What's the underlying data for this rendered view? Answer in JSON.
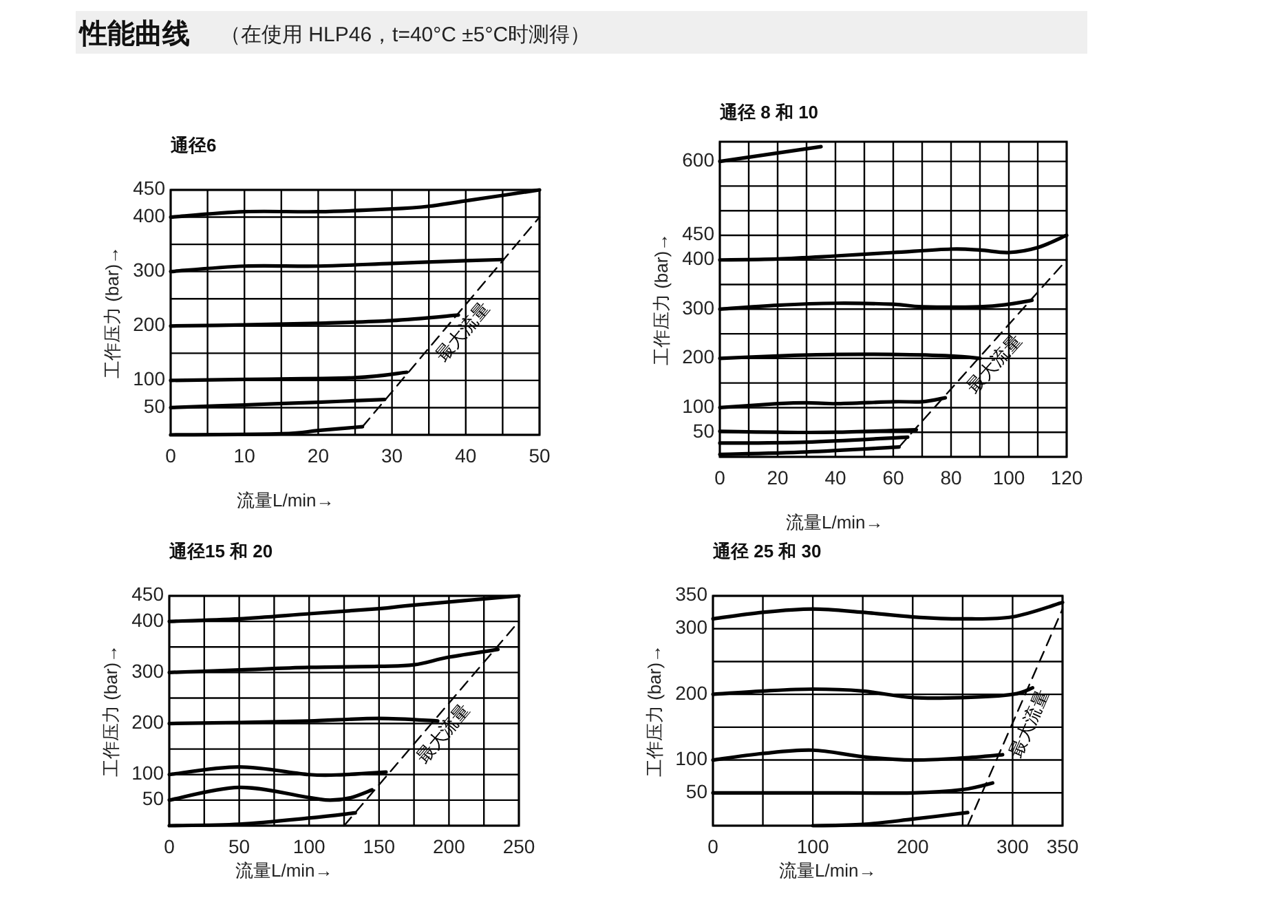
{
  "chart_data": [
    {
      "type": "line",
      "title": "通径6",
      "xlabel": "流量L/min→",
      "ylabel": "工作压力 (bar)→",
      "annotations": [
        "性能曲线",
        "（在使用 HLP46，t=40°C ±5°C时测得）"
      ],
      "grid": true,
      "xlim": [
        0,
        50
      ],
      "ylim": [
        0,
        450
      ],
      "xticks": [
        0,
        {
          "value": 5,
          "label": null
        },
        10,
        {
          "value": 15,
          "label": null
        },
        20,
        {
          "value": 25,
          "label": null
        },
        30,
        {
          "value": 35,
          "label": null
        },
        40,
        {
          "value": 45,
          "label": null
        },
        50
      ],
      "yticks": [
        {
          "value": 0,
          "label": null
        },
        50,
        100,
        {
          "value": 150,
          "label": null
        },
        200,
        {
          "value": 250,
          "label": null
        },
        300,
        {
          "value": 350,
          "label": null
        },
        400,
        450
      ],
      "series": [
        {
          "color": "#000000",
          "x": [
            0,
            10,
            20,
            30,
            35,
            40,
            50
          ],
          "values": [
            400,
            410,
            410,
            415,
            420,
            430,
            450
          ]
        },
        {
          "color": "#000000",
          "x": [
            0,
            10,
            20,
            30,
            40,
            45
          ],
          "values": [
            300,
            310,
            310,
            315,
            320,
            322
          ]
        },
        {
          "color": "#000000",
          "x": [
            0,
            10,
            20,
            30,
            39
          ],
          "values": [
            200,
            202,
            205,
            210,
            220
          ]
        },
        {
          "color": "#000000",
          "x": [
            0,
            10,
            25,
            32
          ],
          "values": [
            100,
            102,
            105,
            115
          ]
        },
        {
          "color": "#000000",
          "x": [
            0,
            10,
            20,
            29
          ],
          "values": [
            50,
            55,
            60,
            65
          ]
        },
        {
          "color": "#000000",
          "x": [
            0,
            15,
            20,
            26
          ],
          "values": [
            0,
            2,
            8,
            15
          ]
        },
        {
          "name": "最大流量",
          "color": "#000000",
          "line_style": "dashed",
          "x": [
            26,
            50
          ],
          "values": [
            15,
            400
          ]
        }
      ]
    },
    {
      "type": "line",
      "title": "通径 8 和 10",
      "xlabel": "流量L/min→",
      "ylabel": "工作压力 (bar)→",
      "grid": true,
      "xlim": [
        0,
        120
      ],
      "ylim": [
        0,
        640
      ],
      "xticks": [
        0,
        {
          "value": 10,
          "label": null
        },
        20,
        {
          "value": 30,
          "label": null
        },
        40,
        {
          "value": 50,
          "label": null
        },
        60,
        {
          "value": 70,
          "label": null
        },
        80,
        {
          "value": 90,
          "label": null
        },
        100,
        {
          "value": 110,
          "label": null
        },
        120
      ],
      "yticks": [
        {
          "value": 0,
          "label": null
        },
        50,
        100,
        {
          "value": 150,
          "label": null
        },
        200,
        {
          "value": 250,
          "label": null
        },
        300,
        {
          "value": 350,
          "label": null
        },
        400,
        450,
        {
          "value": 500,
          "label": null
        },
        {
          "value": 550,
          "label": null
        },
        600
      ],
      "series": [
        {
          "color": "#000000",
          "x": [
            0,
            35
          ],
          "values": [
            600,
            630
          ]
        },
        {
          "color": "#000000",
          "x": [
            0,
            20,
            40,
            60,
            80,
            90,
            100,
            110,
            120
          ],
          "values": [
            400,
            402,
            408,
            415,
            422,
            420,
            415,
            425,
            450
          ]
        },
        {
          "color": "#000000",
          "x": [
            0,
            20,
            40,
            60,
            70,
            90,
            100,
            108
          ],
          "values": [
            300,
            308,
            312,
            310,
            305,
            305,
            310,
            318
          ]
        },
        {
          "color": "#000000",
          "x": [
            0,
            20,
            40,
            60,
            80,
            90
          ],
          "values": [
            200,
            205,
            208,
            208,
            205,
            200
          ]
        },
        {
          "color": "#000000",
          "x": [
            0,
            20,
            30,
            40,
            60,
            70,
            78
          ],
          "values": [
            100,
            108,
            110,
            108,
            112,
            112,
            120
          ]
        },
        {
          "color": "#000000",
          "x": [
            0,
            20,
            40,
            68
          ],
          "values": [
            52,
            50,
            50,
            55
          ]
        },
        {
          "color": "#000000",
          "x": [
            0,
            30,
            65
          ],
          "values": [
            28,
            30,
            40
          ]
        },
        {
          "color": "#000000",
          "x": [
            0,
            30,
            62
          ],
          "values": [
            5,
            10,
            20
          ]
        },
        {
          "name": "最大流量",
          "color": "#000000",
          "line_style": "dashed",
          "x": [
            62,
            120
          ],
          "values": [
            20,
            400
          ]
        }
      ]
    },
    {
      "type": "line",
      "title": "通径15 和 20",
      "xlabel": "流量L/min→",
      "ylabel": "工作压力 (bar)→",
      "grid": true,
      "xlim": [
        0,
        250
      ],
      "ylim": [
        0,
        450
      ],
      "xticks": [
        0,
        {
          "value": 25,
          "label": null
        },
        50,
        {
          "value": 75,
          "label": null
        },
        100,
        {
          "value": 125,
          "label": null
        },
        150,
        {
          "value": 175,
          "label": null
        },
        200,
        {
          "value": 225,
          "label": null
        },
        250
      ],
      "yticks": [
        {
          "value": 0,
          "label": null
        },
        50,
        100,
        {
          "value": 150,
          "label": null
        },
        200,
        {
          "value": 250,
          "label": null
        },
        300,
        {
          "value": 350,
          "label": null
        },
        400,
        450
      ],
      "series": [
        {
          "color": "#000000",
          "x": [
            0,
            50,
            100,
            150,
            175,
            250
          ],
          "values": [
            400,
            405,
            415,
            425,
            432,
            450
          ]
        },
        {
          "color": "#000000",
          "x": [
            0,
            50,
            100,
            150,
            175,
            200,
            235
          ],
          "values": [
            300,
            305,
            310,
            312,
            315,
            330,
            345
          ]
        },
        {
          "color": "#000000",
          "x": [
            0,
            50,
            100,
            150,
            192
          ],
          "values": [
            200,
            202,
            205,
            210,
            205
          ]
        },
        {
          "color": "#000000",
          "x": [
            0,
            50,
            100,
            125,
            155
          ],
          "values": [
            100,
            115,
            100,
            100,
            105
          ]
        },
        {
          "color": "#000000",
          "x": [
            0,
            50,
            100,
            115,
            130,
            145
          ],
          "values": [
            50,
            75,
            55,
            50,
            55,
            70
          ]
        },
        {
          "color": "#000000",
          "x": [
            0,
            50,
            100,
            133
          ],
          "values": [
            0,
            3,
            15,
            25
          ]
        },
        {
          "name": "最大流量",
          "color": "#000000",
          "line_style": "dashed",
          "x": [
            125,
            250
          ],
          "values": [
            0,
            400
          ]
        }
      ]
    },
    {
      "type": "line",
      "title": "通径 25 和 30",
      "xlabel": "流量L/min→",
      "ylabel": "工作压力 (bar)→",
      "grid": true,
      "xlim": [
        0,
        350
      ],
      "ylim": [
        0,
        350
      ],
      "xticks": [
        0,
        {
          "value": 50,
          "label": null
        },
        100,
        {
          "value": 150,
          "label": null
        },
        200,
        {
          "value": 250,
          "label": null
        },
        300,
        350
      ],
      "yticks": [
        {
          "value": 0,
          "label": null
        },
        50,
        100,
        {
          "value": 150,
          "label": null
        },
        200,
        {
          "value": 250,
          "label": null
        },
        300,
        350
      ],
      "series": [
        {
          "color": "#000000",
          "x": [
            0,
            50,
            100,
            150,
            200,
            250,
            300,
            350
          ],
          "values": [
            315,
            325,
            330,
            325,
            318,
            315,
            318,
            340
          ]
        },
        {
          "color": "#000000",
          "x": [
            0,
            50,
            100,
            150,
            200,
            250,
            300,
            320
          ],
          "values": [
            200,
            205,
            208,
            205,
            195,
            195,
            200,
            210
          ]
        },
        {
          "color": "#000000",
          "x": [
            0,
            50,
            100,
            150,
            200,
            250,
            290
          ],
          "values": [
            100,
            110,
            115,
            105,
            100,
            103,
            108
          ]
        },
        {
          "color": "#000000",
          "x": [
            0,
            100,
            200,
            250,
            280
          ],
          "values": [
            50,
            50,
            50,
            55,
            65
          ]
        },
        {
          "color": "#000000",
          "x": [
            100,
            150,
            200,
            255
          ],
          "values": [
            0,
            2,
            10,
            20
          ]
        },
        {
          "name": "最大流量",
          "color": "#000000",
          "line_style": "dashed",
          "x": [
            255,
            350
          ],
          "values": [
            0,
            330
          ]
        }
      ]
    }
  ]
}
